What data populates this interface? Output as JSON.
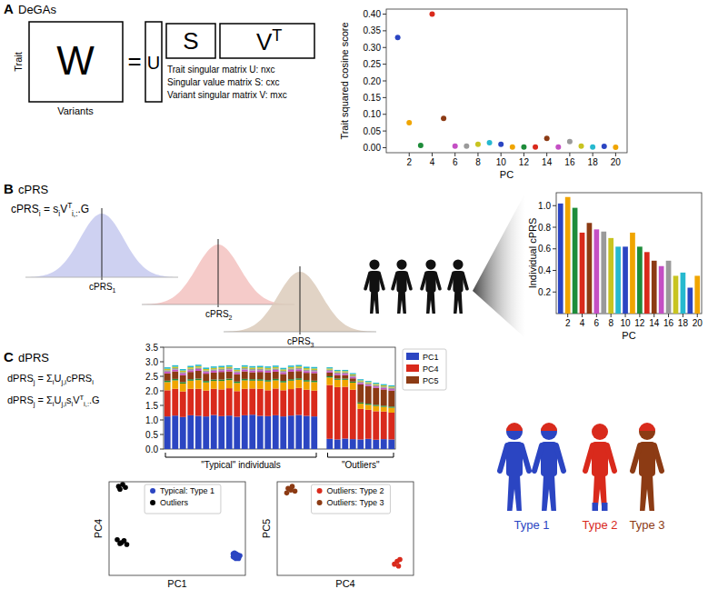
{
  "panels": [
    {
      "letter": "A",
      "title": "DeGAs"
    },
    {
      "letter": "B",
      "title": "cPRS"
    },
    {
      "letter": "C",
      "title": "dPRS"
    }
  ],
  "diagram": {
    "matrix": {
      "W": "W",
      "equals": "=",
      "U": "U",
      "S": "S",
      "V": [
        {
          "t": "V"
        },
        {
          "sup": "T"
        }
      ],
      "row_label": "Trait",
      "col_label": "Variants",
      "notes": [
        "Trait singular matrix U: nxc",
        "Singular value matrix S: cxc",
        "Variant singular matrix V: mxc"
      ]
    },
    "cprs_formula": [
      {
        "t": "cPRS"
      },
      {
        "sub": "i"
      },
      {
        "t": " = s"
      },
      {
        "sub": "i"
      },
      {
        "t": "V"
      },
      {
        "sup": "T"
      },
      {
        "sub": "i,:"
      },
      {
        "t": ".G"
      }
    ],
    "distributions": [
      [
        {
          "t": "cPRS"
        },
        {
          "sub": "1"
        }
      ],
      [
        {
          "t": "cPRS"
        },
        {
          "sub": "2"
        }
      ],
      [
        {
          "t": "cPRS"
        },
        {
          "sub": "3"
        }
      ]
    ],
    "dprs_formulas": [
      [
        {
          "t": "dPRS"
        },
        {
          "sub": "j"
        },
        {
          "t": " = Σ"
        },
        {
          "sub": "i"
        },
        {
          "t": "U"
        },
        {
          "sub": "j,i"
        },
        {
          "t": "cPRS"
        },
        {
          "sub": "i"
        }
      ],
      [
        {
          "t": "dPRS"
        },
        {
          "sub": "j"
        },
        {
          "t": " = Σ"
        },
        {
          "sub": "i"
        },
        {
          "t": "U"
        },
        {
          "sub": "j,i"
        },
        {
          "t": "s"
        },
        {
          "sub": "i"
        },
        {
          "t": "V"
        },
        {
          "sup": "T"
        },
        {
          "sub": "i,:"
        },
        {
          "t": ".G"
        }
      ]
    ],
    "types": [
      "Type 1",
      "Type 2",
      "Type 3"
    ]
  },
  "chart_data": [
    {
      "type": "scatter",
      "x_label": "PC",
      "y_label": "Trait squared cosine score",
      "x": [
        1,
        2,
        3,
        4,
        5,
        6,
        7,
        8,
        9,
        10,
        11,
        12,
        13,
        14,
        15,
        16,
        17,
        18,
        19,
        20
      ],
      "values": [
        0.33,
        0.075,
        0.007,
        0.4,
        0.088,
        0.005,
        0.005,
        0.01,
        0.015,
        0.01,
        0.002,
        0.002,
        0.002,
        0.028,
        0.002,
        0.018,
        0.005,
        0.002,
        0.004,
        0.001
      ],
      "colors": [
        "#2b45c2",
        "#f0a500",
        "#1e8c3a",
        "#d92a1c",
        "#8c3b14",
        "#c44fc4",
        "#9a9a9a",
        "#c8c421",
        "#26b9cf",
        "#2b45c2",
        "#f0a500",
        "#1e8c3a",
        "#d92a1c",
        "#8c3b14",
        "#c44fc4",
        "#9a9a9a",
        "#c8c421",
        "#26b9cf",
        "#2b45c2",
        "#f0a500"
      ],
      "xlim": [
        0,
        21
      ],
      "xticks": [
        2,
        4,
        6,
        8,
        10,
        12,
        14,
        16,
        18,
        20
      ],
      "ylim": [
        -0.015,
        0.415
      ],
      "yticks": [
        {
          "value": 0,
          "label": "0.00"
        },
        0.05,
        {
          "value": 0.1,
          "label": "0.10"
        },
        0.15,
        {
          "value": 0.2,
          "label": "0.20"
        },
        0.25,
        {
          "value": 0.3,
          "label": "0.30"
        },
        0.35,
        {
          "value": 0.4,
          "label": "0.40"
        }
      ],
      "marker": "circle"
    },
    {
      "type": "bar",
      "x_label": "PC",
      "y_label": "Individual cPRS",
      "x": [
        1,
        2,
        3,
        4,
        5,
        6,
        7,
        8,
        9,
        10,
        11,
        12,
        13,
        14,
        15,
        16,
        17,
        18,
        19,
        20
      ],
      "values": [
        1.02,
        1.08,
        0.98,
        0.75,
        0.84,
        0.78,
        0.76,
        0.7,
        0.62,
        0.62,
        0.75,
        0.62,
        0.57,
        0.49,
        0.44,
        0.49,
        0.35,
        0.38,
        0.24,
        0.35
      ],
      "colors": [
        "#2b45c2",
        "#f0a500",
        "#1e8c3a",
        "#d92a1c",
        "#8c3b14",
        "#c44fc4",
        "#9a9a9a",
        "#c8c421",
        "#26b9cf",
        "#2b45c2",
        "#f0a500",
        "#1e8c3a",
        "#d92a1c",
        "#8c3b14",
        "#c44fc4",
        "#9a9a9a",
        "#c8c421",
        "#26b9cf",
        "#2b45c2",
        "#f0a500"
      ],
      "xlim": [
        0.4,
        20.6
      ],
      "xticks": [
        2,
        4,
        6,
        8,
        10,
        12,
        14,
        16,
        18,
        20
      ],
      "ylim": [
        0,
        1.12
      ],
      "yticks": [
        0.2,
        0.4,
        0.6,
        0.8,
        {
          "value": 1,
          "label": "1.0"
        }
      ]
    },
    {
      "type": "bar",
      "stacked": true,
      "legend": "right",
      "tick_labels": "y",
      "categories": [
        null,
        null,
        null,
        null,
        null,
        null,
        null,
        null,
        null,
        null,
        null,
        null,
        null,
        null,
        null,
        null,
        null,
        null,
        null,
        null,
        null,
        null,
        null,
        null,
        null,
        null,
        null,
        null,
        null,
        null
      ],
      "group_labels": [
        "\"Typical\" individuals",
        "\"Outliers\""
      ],
      "ylim": [
        0,
        3.5
      ],
      "yticks": [
        {
          "value": 0,
          "label": "0.0"
        },
        0.5,
        {
          "value": 1,
          "label": "1.0"
        },
        1.5,
        {
          "value": 2,
          "label": "2.0"
        },
        2.5,
        {
          "value": 3,
          "label": "3.0"
        },
        3.5
      ],
      "series": [
        {
          "name": "PC1",
          "color": "#2b45c2",
          "values": [
            1.12,
            1.15,
            1.1,
            1.16,
            1.14,
            1.12,
            1.17,
            1.13,
            1.15,
            1.11,
            1.16,
            1.18,
            1.14,
            1.13,
            1.16,
            1.12,
            1.15,
            1.17,
            1.14,
            1.12,
            null,
            0.35,
            0.33,
            0.36,
            0.34,
            0.33,
            0.35,
            0.32,
            0.34,
            0.33
          ]
        },
        {
          "name": "PC4",
          "color": "#d92a1c",
          "values": [
            0.9,
            0.92,
            0.88,
            0.91,
            0.93,
            0.89,
            0.9,
            0.92,
            0.94,
            0.88,
            0.91,
            0.9,
            0.93,
            0.89,
            0.92,
            0.9,
            0.91,
            0.93,
            0.9,
            0.89,
            null,
            1.85,
            1.8,
            1.78,
            1.7,
            1.05,
            1.0,
            0.98,
            0.95,
            0.92
          ]
        },
        {
          "name": null,
          "color": "#f0a500",
          "values": [
            0.28,
            0.29,
            0.27,
            0.28,
            0.3,
            0.28,
            0.27,
            0.29,
            0.28,
            0.28,
            0.29,
            0.27,
            0.28,
            0.3,
            0.28,
            0.27,
            0.29,
            0.28,
            0.28,
            0.29,
            null,
            0.26,
            0.25,
            0.24,
            0.24,
            0.18,
            0.17,
            0.18,
            0.16,
            0.17
          ]
        },
        {
          "name": null,
          "color": "#1e8c3a",
          "values": [
            0.05,
            0.05,
            0.05,
            0.05,
            0.05,
            0.05,
            0.05,
            0.05,
            0.05,
            0.05,
            0.05,
            0.05,
            0.05,
            0.05,
            0.05,
            0.05,
            0.05,
            0.05,
            0.05,
            0.05,
            null,
            0.04,
            0.04,
            0.04,
            0.04,
            0.04,
            0.04,
            0.04,
            0.04,
            0.04
          ]
        },
        {
          "name": "PC5",
          "color": "#8c3b14",
          "values": [
            0.25,
            0.26,
            0.24,
            0.25,
            0.27,
            0.25,
            0.24,
            0.26,
            0.25,
            0.25,
            0.26,
            0.24,
            0.25,
            0.26,
            0.25,
            0.24,
            0.26,
            0.25,
            0.25,
            0.26,
            null,
            0.13,
            0.12,
            0.12,
            0.11,
            0.62,
            0.6,
            0.58,
            0.56,
            0.55
          ]
        },
        {
          "name": null,
          "color": "#c44fc4",
          "values": [
            0.06,
            0.06,
            0.06,
            0.06,
            0.06,
            0.06,
            0.06,
            0.06,
            0.06,
            0.06,
            0.06,
            0.06,
            0.06,
            0.06,
            0.06,
            0.06,
            0.06,
            0.06,
            0.06,
            0.06,
            null,
            0.05,
            0.05,
            0.05,
            0.05,
            0.05,
            0.05,
            0.05,
            0.05,
            0.05
          ]
        },
        {
          "name": null,
          "color": "#9a9a9a",
          "values": [
            0.05,
            0.05,
            0.05,
            0.05,
            0.05,
            0.05,
            0.05,
            0.05,
            0.05,
            0.05,
            0.05,
            0.05,
            0.05,
            0.05,
            0.05,
            0.05,
            0.05,
            0.05,
            0.05,
            0.05,
            null,
            0.05,
            0.05,
            0.05,
            0.05,
            0.05,
            0.05,
            0.05,
            0.05,
            0.05
          ]
        },
        {
          "name": null,
          "color": "#c8c421",
          "values": [
            0.05,
            0.05,
            0.05,
            0.05,
            0.05,
            0.05,
            0.05,
            0.05,
            0.05,
            0.05,
            0.05,
            0.05,
            0.05,
            0.05,
            0.05,
            0.05,
            0.05,
            0.05,
            0.05,
            0.05,
            null,
            0.04,
            0.04,
            0.04,
            0.04,
            0.04,
            0.04,
            0.04,
            0.04,
            0.04
          ]
        },
        {
          "name": null,
          "color": "#26b9cf",
          "values": [
            0.05,
            0.05,
            0.05,
            0.05,
            0.05,
            0.05,
            0.05,
            0.05,
            0.05,
            0.05,
            0.05,
            0.05,
            0.05,
            0.05,
            0.05,
            0.05,
            0.05,
            0.05,
            0.05,
            0.05,
            null,
            0.04,
            0.04,
            0.04,
            0.04,
            0.04,
            0.04,
            0.04,
            0.04,
            0.04
          ]
        }
      ]
    },
    {
      "type": "scatter",
      "x_label": "PC1",
      "y_label": "PC4",
      "tick_labels": false,
      "legend": "upper center",
      "marker": "circle",
      "xlim": [
        0,
        1
      ],
      "ylim": [
        0,
        1
      ],
      "series": [
        {
          "name": "Typical: Type 1",
          "color": "#2b45c2",
          "x": [
            0.92,
            0.94,
            0.93,
            0.95,
            0.91,
            0.93,
            0.94,
            0.92,
            0.96,
            0.93,
            0.95,
            0.92,
            0.94,
            0.93,
            0.91,
            0.95,
            0.94,
            0.93,
            0.92,
            0.94
          ],
          "values": [
            0.2,
            0.22,
            0.19,
            0.21,
            0.23,
            0.18,
            0.2,
            0.24,
            0.21,
            0.22,
            0.19,
            0.21,
            0.2,
            0.23,
            0.2,
            0.18,
            0.22,
            0.21,
            0.19,
            0.2
          ]
        },
        {
          "name": "Outliers",
          "color": "#000000",
          "x": [
            0.07,
            0.1,
            0.12,
            0.08,
            0.06,
            0.09,
            0.11,
            0.13,
            0.08
          ],
          "values": [
            0.95,
            0.97,
            0.94,
            0.92,
            0.38,
            0.35,
            0.37,
            0.33,
            0.34
          ]
        }
      ]
    },
    {
      "type": "scatter",
      "x_label": "PC4",
      "y_label": "PC5",
      "tick_labels": false,
      "legend": "upper center",
      "marker": "circle",
      "xlim": [
        0,
        1
      ],
      "ylim": [
        0,
        1
      ],
      "series": [
        {
          "name": "Outliers: Type 2",
          "color": "#d92a1c",
          "x": [
            0.88,
            0.9,
            0.86,
            0.89
          ],
          "values": [
            0.15,
            0.17,
            0.12,
            0.1
          ]
        },
        {
          "name": "Outliers: Type 3",
          "color": "#8c3b14",
          "x": [
            0.08,
            0.11,
            0.13,
            0.07,
            0.1
          ],
          "values": [
            0.93,
            0.95,
            0.9,
            0.88,
            0.91
          ]
        }
      ]
    }
  ]
}
